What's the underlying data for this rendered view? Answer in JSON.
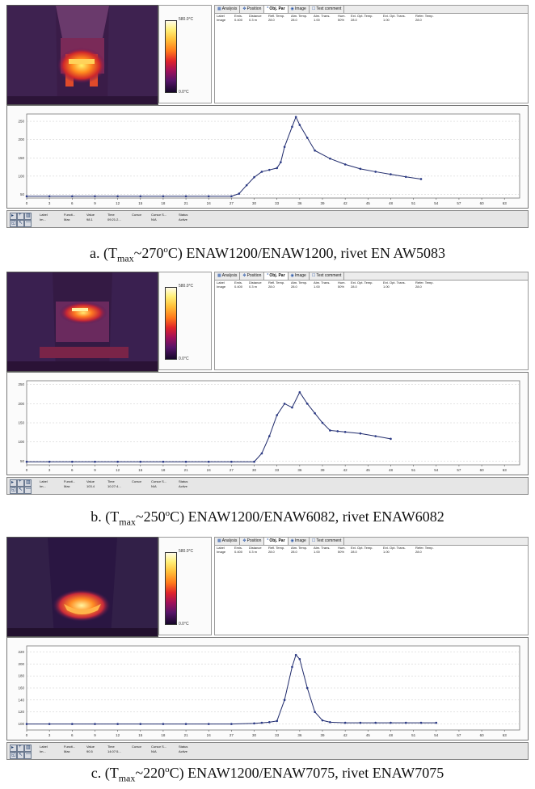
{
  "colors": {
    "curve": "#1f2a6b",
    "marker": "#2b3a86",
    "grid": "#c8c8c8",
    "window_bg": "#ececec"
  },
  "icons": {
    "tab_analysis": "grid-icon",
    "tab_position": "crosshair-icon",
    "tab_obj_par": "thermometer-icon",
    "tab_image": "camera-icon",
    "tab_text_comment": "comment-icon"
  },
  "tabs": [
    {
      "label": "Analysis"
    },
    {
      "label": "Position"
    },
    {
      "label": "Obj. Par"
    },
    {
      "label": "Image"
    },
    {
      "label": "Text comment"
    }
  ],
  "param_headers": [
    "Label",
    "Emis.",
    "Distance",
    "Refl. Temp.",
    "Atm. Temp.",
    "Atm. Trans.",
    "Hum.",
    "Ext. Opt. Temp.",
    "Ext. Opt. Trans.",
    "Refer. Temp."
  ],
  "param_values": [
    "Image",
    "0.400",
    "0.3 m",
    "28.0",
    "28.0",
    "1.00",
    "50%",
    "28.0",
    "1.00",
    "28.0"
  ],
  "status_headers": [
    "Label",
    "Functi...",
    "Value",
    "Time",
    "Cursor",
    "Cursor S...",
    "Status"
  ],
  "panels": [
    {
      "id": "a",
      "colorbar": {
        "max": "580.0°C",
        "min": "0.0°C"
      },
      "status_values": [
        "Im...",
        "Max",
        "98.1",
        "09:21:2...",
        "",
        "N/A",
        "Active"
      ],
      "caption": {
        "prefix": "a. (T",
        "sub": "max",
        "mid": "~270",
        "sup": "o",
        "suffix": "C) ENAW1200/ENAW1200, rivet EN AW5083"
      },
      "chart_data": {
        "type": "line",
        "x_ticks": [
          0,
          3,
          6,
          9,
          12,
          15,
          18,
          21,
          24,
          27,
          30,
          33,
          36,
          39,
          42,
          45,
          48,
          51,
          54,
          57,
          60,
          63
        ],
        "y_ticks": [
          50,
          100,
          150,
          200,
          250
        ],
        "ylim": [
          40,
          270
        ],
        "xlim": [
          0,
          65
        ],
        "series": [
          {
            "x": [
              0,
              3,
              6,
              9,
              12,
              15,
              18,
              21,
              24,
              27,
              28,
              29,
              30,
              31,
              32,
              33,
              33.5,
              34,
              35,
              35.5,
              36,
              37,
              38,
              40,
              42,
              44,
              46,
              48,
              50,
              52
            ],
            "y": [
              45,
              45,
              45,
              45,
              45,
              45,
              45,
              45,
              45,
              45,
              52,
              75,
              97,
              112,
              117,
              122,
              138,
              180,
              235,
              262,
              240,
              205,
              170,
              148,
              132,
              120,
              112,
              105,
              98,
              92
            ]
          }
        ]
      }
    },
    {
      "id": "b",
      "colorbar": {
        "max": "580.0°C",
        "min": "0.0°C"
      },
      "status_values": [
        "Im...",
        "Max",
        "103.4",
        "10:27:4...",
        "",
        "N/A",
        "Active"
      ],
      "caption": {
        "prefix": "b. (T",
        "sub": "max",
        "mid": "~250",
        "sup": "o",
        "suffix": "C) ENAW1200/ENAW6082, rivet ENAW6082"
      },
      "chart_data": {
        "type": "line",
        "x_ticks": [
          0,
          3,
          6,
          9,
          12,
          15,
          18,
          21,
          24,
          27,
          30,
          33,
          36,
          39,
          42,
          45,
          48,
          51,
          54,
          57,
          60,
          63
        ],
        "y_ticks": [
          50,
          100,
          150,
          200,
          250
        ],
        "ylim": [
          40,
          260
        ],
        "xlim": [
          0,
          65
        ],
        "series": [
          {
            "x": [
              0,
              3,
              6,
              9,
              12,
              15,
              18,
              21,
              24,
              27,
              30,
              31,
              32,
              33,
              34,
              35,
              36,
              37,
              38,
              39,
              40,
              41,
              42,
              44,
              46,
              48
            ],
            "y": [
              48,
              48,
              48,
              48,
              48,
              48,
              48,
              48,
              48,
              48,
              48,
              70,
              115,
              170,
              200,
              190,
              230,
              200,
              175,
              150,
              130,
              128,
              126,
              122,
              115,
              108
            ]
          }
        ]
      }
    },
    {
      "id": "c",
      "colorbar": {
        "max": "580.0°C",
        "min": "0.0°C"
      },
      "status_values": [
        "Im...",
        "Max",
        "90.5",
        "14:07:5...",
        "",
        "N/A",
        "Active"
      ],
      "caption": {
        "prefix": "c. (T",
        "sub": "max",
        "mid": "~220",
        "sup": "o",
        "suffix": "C) ENAW1200/ENAW7075, rivet ENAW7075"
      },
      "chart_data": {
        "type": "line",
        "x_ticks": [
          0,
          3,
          6,
          9,
          12,
          15,
          18,
          21,
          24,
          27,
          30,
          33,
          36,
          39,
          42,
          45,
          48,
          51,
          54,
          57,
          60,
          63
        ],
        "y_ticks": [
          100,
          120,
          140,
          160,
          180,
          200,
          220
        ],
        "ylim": [
          90,
          230
        ],
        "xlim": [
          0,
          65
        ],
        "series": [
          {
            "x": [
              0,
              3,
              6,
              9,
              12,
              15,
              18,
              21,
              24,
              27,
              30,
              31,
              32,
              33,
              34,
              35,
              35.5,
              36,
              37,
              38,
              39,
              40,
              42,
              44,
              46,
              48,
              50,
              52,
              54
            ],
            "y": [
              100,
              100,
              100,
              100,
              100,
              100,
              100,
              100,
              100,
              100,
              101,
              102,
              103,
              105,
              140,
              195,
              215,
              208,
              160,
              120,
              106,
              103,
              102,
              102,
              102,
              102,
              102,
              102,
              102
            ]
          }
        ]
      }
    }
  ]
}
